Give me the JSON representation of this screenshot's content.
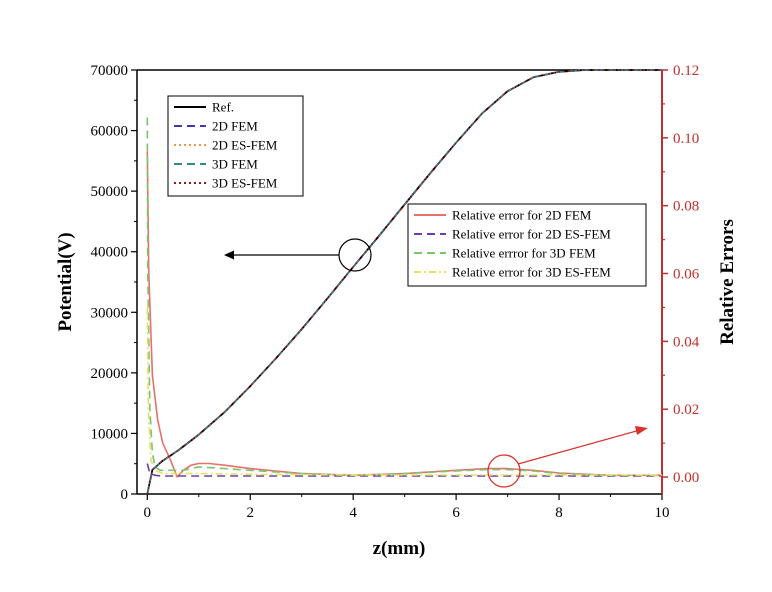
{
  "chart_data": {
    "type": "line",
    "xlabel": "z(mm)",
    "ylabel_left": "Potential(V)",
    "ylabel_right": "Relative Errors",
    "xlim": [
      -0.2,
      10
    ],
    "ylim_left": [
      0,
      70000
    ],
    "ylim_right": [
      -0.005,
      0.12
    ],
    "xticks": [
      "0",
      "2",
      "4",
      "6",
      "8",
      "10"
    ],
    "yticks_left": [
      "0",
      "10000",
      "20000",
      "30000",
      "40000",
      "50000",
      "60000",
      "70000"
    ],
    "yticks_right": [
      "0.00",
      "0.02",
      "0.04",
      "0.06",
      "0.08",
      "0.10",
      "0.12"
    ],
    "legend_potential": {
      "placement": "upper-left",
      "entries": [
        "Ref.",
        "2D  FEM",
        "2D ES-FEM",
        "3D FEM",
        "3D ES-FEM"
      ]
    },
    "legend_error": {
      "placement": "center-right",
      "entries": [
        "Relative error for 2D FEM",
        "Relative error for 2D ES-FEM",
        "Relative errror for 3D FEM",
        "Relative error for 3D ES-FEM"
      ]
    },
    "potential_series": [
      {
        "name": "Ref.",
        "color": "#000000",
        "style": "solid"
      },
      {
        "name": "2D  FEM",
        "color": "#3a3aa8",
        "style": "dashed"
      },
      {
        "name": "2D ES-FEM",
        "color": "#e89a3c",
        "style": "dotted"
      },
      {
        "name": "3D FEM",
        "color": "#2e8b8b",
        "style": "dashed"
      },
      {
        "name": "3D ES-FEM",
        "color": "#8b1a1a",
        "style": "dotted"
      }
    ],
    "potential_x": [
      0,
      0.1,
      0.3,
      0.6,
      1,
      1.5,
      2,
      2.5,
      3,
      3.5,
      4,
      4.5,
      5,
      5.5,
      6,
      6.5,
      7,
      7.5,
      8,
      8.5,
      9,
      10
    ],
    "potential_y": [
      0,
      4000,
      5500,
      7200,
      9800,
      13500,
      17800,
      22400,
      27200,
      32300,
      37500,
      42600,
      47800,
      53000,
      58000,
      62800,
      66500,
      68800,
      69700,
      70000,
      70000,
      70000
    ],
    "error_series": [
      {
        "name": "Relative error for 2D FEM",
        "color": "#e8706a",
        "style": "solid",
        "x": [
          0,
          0.03,
          0.1,
          0.2,
          0.3,
          0.45,
          0.58,
          0.7,
          0.85,
          1.0,
          1.2,
          1.5,
          2,
          3,
          4,
          5,
          6,
          6.6,
          7,
          7.5,
          8,
          9,
          10
        ],
        "y": [
          0.096,
          0.06,
          0.03,
          0.017,
          0.01,
          0.005,
          0.0,
          0.002,
          0.0035,
          0.004,
          0.004,
          0.0035,
          0.0025,
          0.001,
          0.0005,
          0.001,
          0.002,
          0.0025,
          0.0025,
          0.002,
          0.0012,
          0.0005,
          0.0005
        ]
      },
      {
        "name": "Relative error for 2D ES-FEM",
        "color": "#6a3fb0",
        "style": "dashed",
        "x": [
          0,
          0.05,
          0.15,
          0.3,
          1,
          2,
          4,
          6,
          8,
          10
        ],
        "y": [
          0.004,
          0.001,
          0.0005,
          0.0003,
          0.0003,
          0.0003,
          0.0003,
          0.0003,
          0.0003,
          0.0003
        ]
      },
      {
        "name": "Relative errror for 3D FEM",
        "color": "#7cc46a",
        "style": "dashed",
        "x": [
          0,
          0.01,
          0.05,
          0.1,
          0.15,
          0.25,
          0.4,
          0.7,
          1,
          1.5,
          2,
          3,
          4,
          5,
          6,
          6.6,
          7,
          7.5,
          8,
          9,
          10
        ],
        "y": [
          0.106,
          0.06,
          0.02,
          0.007,
          0.003,
          0.002,
          0.002,
          0.002,
          0.003,
          0.0025,
          0.002,
          0.001,
          0.0005,
          0.001,
          0.0018,
          0.0022,
          0.0022,
          0.0018,
          0.001,
          0.0005,
          0.0005
        ]
      },
      {
        "name": "Relative error for 3D ES-FEM",
        "color": "#e8e060",
        "style": "dashdot",
        "x": [
          0,
          0.02,
          0.07,
          0.15,
          0.3,
          1,
          2,
          4,
          6,
          8,
          10
        ],
        "y": [
          0.05,
          0.02,
          0.005,
          0.002,
          0.001,
          0.001,
          0.0008,
          0.0006,
          0.0006,
          0.0006,
          0.0006
        ]
      }
    ],
    "annotations": [
      {
        "type": "circle",
        "target": "potential",
        "x": 4.0,
        "y_left": 39500,
        "arrow_to": "left-axis"
      },
      {
        "type": "circle",
        "target": "error",
        "x": 6.9,
        "y_right": 0.0022,
        "arrow_to": "right-axis"
      }
    ],
    "colors": {
      "right_axis": "#c3302b",
      "annotation_red": "#d9322d"
    }
  }
}
